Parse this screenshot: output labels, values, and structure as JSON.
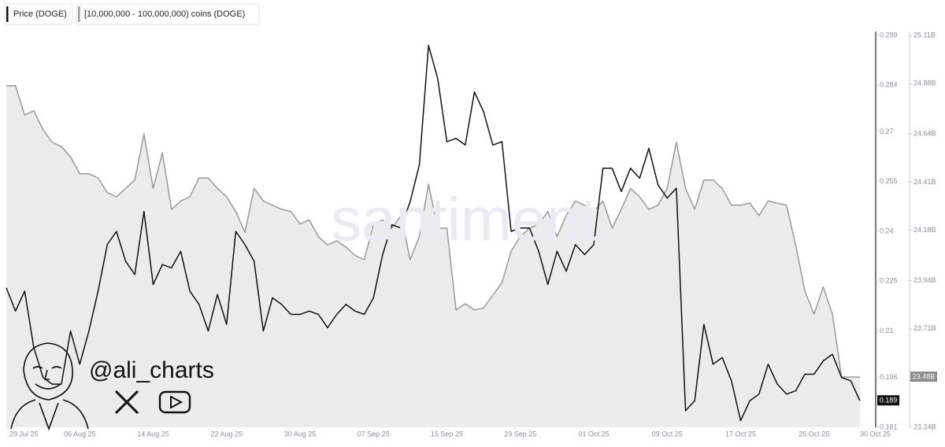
{
  "chart_data": {
    "type": "line",
    "watermark": "santiment.",
    "annotation": "@ali_charts",
    "categories": [
      "29 Jul 25",
      null,
      null,
      null,
      null,
      null,
      null,
      null,
      "06 Aug 25",
      null,
      null,
      null,
      null,
      null,
      null,
      null,
      "14 Aug 25",
      null,
      null,
      null,
      null,
      null,
      null,
      null,
      "22 Aug 25",
      null,
      null,
      null,
      null,
      null,
      null,
      null,
      "30 Aug 25",
      null,
      null,
      null,
      null,
      null,
      null,
      null,
      "07 Sep 25",
      null,
      null,
      null,
      null,
      null,
      null,
      null,
      "15 Sep 25",
      null,
      null,
      null,
      null,
      null,
      null,
      null,
      "23 Sep 25",
      null,
      null,
      null,
      null,
      null,
      null,
      null,
      "01 Oct 25",
      null,
      null,
      null,
      null,
      null,
      null,
      null,
      "09 Oct 25",
      null,
      null,
      null,
      null,
      null,
      null,
      null,
      "17 Oct 25",
      null,
      null,
      null,
      null,
      null,
      null,
      null,
      "25 Oct 25",
      null,
      null,
      null,
      null,
      "30 Oct 25"
    ],
    "series": [
      {
        "name": "Price (DOGE)",
        "color": "#111111",
        "axis": "y",
        "current_value": 0.189,
        "values": [
          0.223,
          0.216,
          0.222,
          0.205,
          0.196,
          0.194,
          0.194,
          0.21,
          0.2,
          0.21,
          0.222,
          0.236,
          0.24,
          0.231,
          0.227,
          0.246,
          0.224,
          0.23,
          0.229,
          0.234,
          0.222,
          0.218,
          0.21,
          0.221,
          0.212,
          0.24,
          0.236,
          0.231,
          0.21,
          0.22,
          0.218,
          0.215,
          0.215,
          0.216,
          0.215,
          0.211,
          0.215,
          0.218,
          0.216,
          0.215,
          0.22,
          0.233,
          0.242,
          0.241,
          0.249,
          0.26,
          0.296,
          0.286,
          0.267,
          0.268,
          0.266,
          0.282,
          0.276,
          0.266,
          0.267,
          0.24,
          0.241,
          0.241,
          0.234,
          0.224,
          0.234,
          0.228,
          0.236,
          0.233,
          0.236,
          0.259,
          0.259,
          0.252,
          0.259,
          0.256,
          0.265,
          0.254,
          0.25,
          0.253,
          0.186,
          0.189,
          0.212,
          0.2,
          0.202,
          0.195,
          0.183,
          0.189,
          0.191,
          0.2,
          0.194,
          0.191,
          0.192,
          0.197,
          0.197,
          0.201,
          0.203,
          0.196,
          0.195,
          0.189
        ]
      },
      {
        "name": "[10,000,000 - 100,000,000) coins (DOGE)",
        "color": "#9a9a9a",
        "fill_color": "#ececec",
        "axis": "y2",
        "current_value": {
          "value": 23.48,
          "label": "23.48B"
        },
        "values": [
          24.87,
          24.87,
          24.73,
          24.75,
          24.66,
          24.6,
          24.58,
          24.53,
          24.45,
          24.45,
          24.43,
          24.36,
          24.34,
          24.38,
          24.42,
          24.64,
          24.38,
          24.55,
          24.28,
          24.32,
          24.34,
          24.43,
          24.43,
          24.38,
          24.34,
          24.27,
          24.17,
          24.38,
          24.32,
          24.3,
          24.28,
          24.27,
          24.21,
          24.23,
          24.15,
          24.11,
          24.13,
          24.1,
          24.06,
          24.04,
          24.21,
          24.23,
          24.19,
          24.25,
          24.04,
          24.15,
          24.4,
          24.19,
          24.19,
          23.8,
          23.83,
          23.8,
          23.81,
          23.87,
          23.93,
          24.08,
          24.15,
          24.19,
          24.21,
          24.27,
          24.15,
          24.25,
          24.32,
          24.3,
          24.27,
          24.32,
          24.19,
          24.28,
          24.38,
          24.34,
          24.28,
          24.3,
          24.38,
          24.6,
          24.38,
          24.28,
          24.42,
          24.42,
          24.38,
          24.3,
          24.3,
          24.31,
          24.25,
          24.32,
          24.31,
          24.3,
          24.11,
          23.89,
          23.78,
          23.91,
          23.78,
          23.48,
          23.48,
          23.48
        ]
      }
    ],
    "ylim": [
      0.181,
      0.299
    ],
    "yticks": [
      0.181,
      0.196,
      0.21,
      0.225,
      0.24,
      0.255,
      0.27,
      0.284,
      0.299
    ],
    "y2lim": [
      23.24,
      25.11
    ],
    "y2ticks": [
      {
        "value": 23.24,
        "label": "23.24B"
      },
      {
        "value": 23.71,
        "label": "23.71B"
      },
      {
        "value": 23.94,
        "label": "23.94B"
      },
      {
        "value": 24.18,
        "label": "24.18B"
      },
      {
        "value": 24.41,
        "label": "24.41B"
      },
      {
        "value": 24.64,
        "label": "24.64B"
      },
      {
        "value": 24.88,
        "label": "24.88B"
      },
      {
        "value": 25.11,
        "label": "25.11B"
      }
    ],
    "grid": false
  }
}
